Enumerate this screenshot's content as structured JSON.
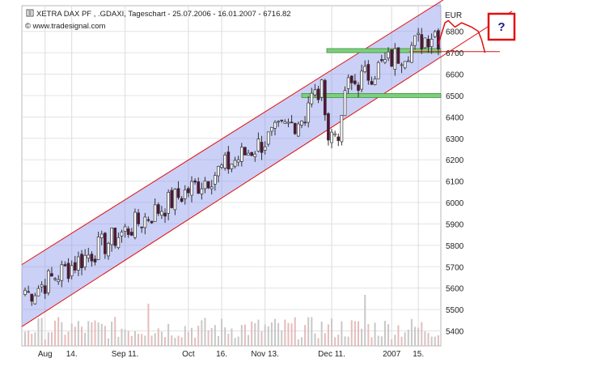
{
  "chart_data": {
    "type": "candlestick",
    "title": "XETRA DAX PF   , .GDAXI, Tageschart - 25.07.2006 - 16.01.2007 - 6716.82",
    "subtitle": "© www.tradesignal.com",
    "currency_label": "EUR",
    "annotation": "?",
    "ylim": [
      5330,
      6920
    ],
    "y_ticks": [
      5400,
      5500,
      5600,
      5700,
      5800,
      5900,
      6000,
      6100,
      6200,
      6300,
      6400,
      6500,
      6600,
      6700,
      6800
    ],
    "y_tick_labels": [
      "5400",
      "5500",
      "5600",
      "5700",
      "5800",
      "5900",
      "6000",
      "6100",
      "6200",
      "6300",
      "6400",
      "6500",
      "6600",
      "6700",
      "6800"
    ],
    "x_tick_labels": [
      "Aug",
      "14.",
      "Sep 11.",
      "Oct",
      "16.",
      "Nov 13.",
      "Dec 11.",
      "2007",
      "15."
    ],
    "x_tick_index": [
      6,
      14,
      30,
      49,
      59,
      72,
      92,
      110,
      118
    ],
    "grid": true,
    "legend": "none",
    "channel": {
      "lower_start": 5420,
      "lower_end": 6680,
      "upper_start": 5710,
      "upper_end": 6940
    },
    "support_levels": [
      6500,
      6710
    ],
    "resistance_line": 6705,
    "forecast_path": [
      [
        124,
        6740
      ],
      [
        126,
        6840
      ],
      [
        127,
        6850
      ],
      [
        129,
        6820
      ],
      [
        131,
        6840
      ],
      [
        134,
        6820
      ],
      [
        136,
        6800
      ],
      [
        137,
        6760
      ],
      [
        138,
        6700
      ]
    ],
    "close_start": 5590,
    "close_end": 6716.82,
    "colors": {
      "up": "#ffffff",
      "down": "#5a0f35",
      "channel_fill": "#8c96ee",
      "channel_line": "#e01010",
      "support_fill": "#7ccf7c",
      "forecast": "#e01010",
      "volume_up": "#c8c8c8",
      "volume_down": "#e6bcbc"
    }
  }
}
